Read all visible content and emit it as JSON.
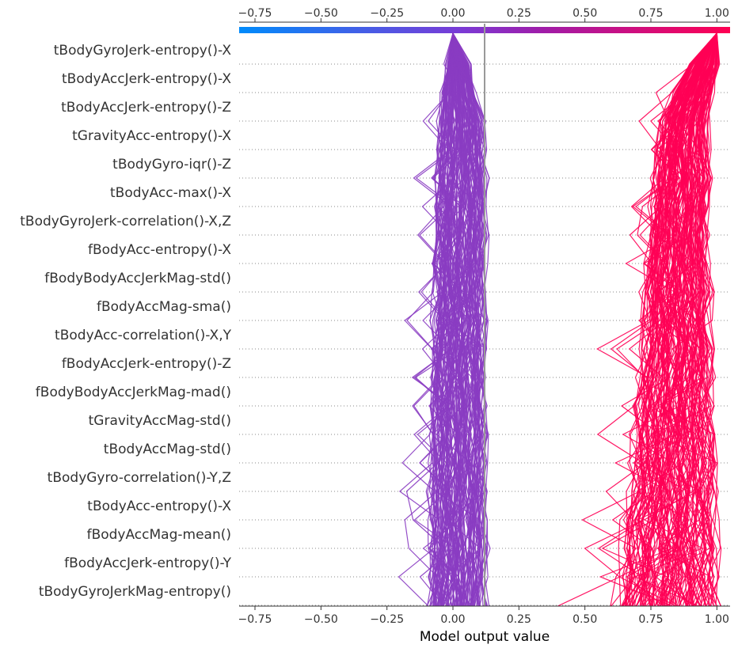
{
  "chart_data": {
    "type": "line",
    "subtype": "shap-decision-plot",
    "xlabel": "Model output value",
    "xlim": [
      -0.81,
      1.05
    ],
    "base_value": 0.12,
    "x_ticks": [
      "−0.75",
      "−0.50",
      "−0.25",
      "0.00",
      "0.25",
      "0.50",
      "0.75",
      "1.00"
    ],
    "x_tick_values": [
      -0.75,
      -0.5,
      -0.25,
      0.0,
      0.25,
      0.5,
      0.75,
      1.0
    ],
    "features": [
      "tBodyGyroJerk-entropy()-X",
      "tBodyAccJerk-entropy()-X",
      "tBodyAccJerk-entropy()-Z",
      "tGravityAcc-entropy()-X",
      "tBodyGyro-iqr()-Z",
      "tBodyAcc-max()-X",
      "tBodyGyroJerk-correlation()-X,Z",
      "fBodyAcc-entropy()-X",
      "fBodyBodyAccJerkMag-std()",
      "fBodyAccMag-sma()",
      "tBodyAcc-correlation()-X,Y",
      "fBodyAccJerk-entropy()-Z",
      "fBodyBodyAccJerkMag-mad()",
      "tGravityAccMag-std()",
      "tBodyAccMag-std()",
      "tBodyGyro-correlation()-Y,Z",
      "tBodyAcc-entropy()-X",
      "fBodyAccMag-mean()",
      "fBodyAccJerk-entropy()-Y",
      "tBodyGyroJerkMag-entropy()"
    ],
    "groups": [
      {
        "final_output": 0.0,
        "color": "#8a3cc2",
        "bottom_spread": [
          -0.06,
          0.09
        ],
        "path_center": [
          0.0,
          0.02,
          0.02,
          0.03,
          0.03,
          0.03,
          0.03,
          0.03,
          0.025,
          0.025,
          0.025,
          0.025,
          0.02,
          0.02,
          0.02,
          0.02,
          0.02,
          0.02,
          0.02,
          0.02,
          0.015
        ],
        "path_halfwidth": [
          0.0,
          0.04,
          0.06,
          0.08,
          0.085,
          0.09,
          0.09,
          0.09,
          0.09,
          0.09,
          0.095,
          0.095,
          0.095,
          0.095,
          0.095,
          0.095,
          0.1,
          0.1,
          0.1,
          0.1,
          0.1
        ]
      },
      {
        "final_output": 1.0,
        "color": "#ff0055",
        "bottom_spread": [
          0.52,
          0.97
        ],
        "path_center": [
          1.0,
          0.95,
          0.91,
          0.88,
          0.87,
          0.87,
          0.86,
          0.855,
          0.85,
          0.85,
          0.85,
          0.85,
          0.845,
          0.84,
          0.84,
          0.84,
          0.835,
          0.83,
          0.825,
          0.82,
          0.815
        ],
        "path_halfwidth": [
          0.0,
          0.05,
          0.07,
          0.08,
          0.09,
          0.1,
          0.1,
          0.1,
          0.11,
          0.12,
          0.12,
          0.13,
          0.13,
          0.14,
          0.14,
          0.15,
          0.15,
          0.16,
          0.16,
          0.17,
          0.18
        ]
      }
    ],
    "colorbar": {
      "low_color": "#008bfb",
      "mid_color": "#8a30c4",
      "high_color": "#ff0052",
      "range": [
        -0.81,
        1.05
      ]
    }
  }
}
